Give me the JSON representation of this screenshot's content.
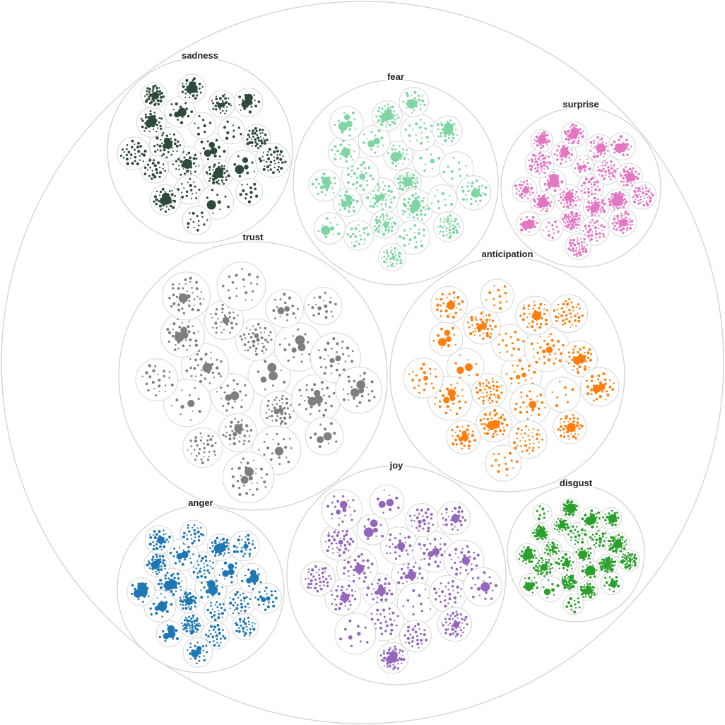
{
  "chart_data": {
    "type": "circle-packing",
    "groups": [
      {
        "name": "sadness",
        "color": "#2d4a3a",
        "clusters": 22
      },
      {
        "name": "fear",
        "color": "#7fd6a3",
        "clusters": 24
      },
      {
        "name": "surprise",
        "color": "#e377c2",
        "clusters": 23
      },
      {
        "name": "trust",
        "color": "#7f7f7f",
        "clusters": 22
      },
      {
        "name": "anticipation",
        "color": "#ff7f0e",
        "clusters": 22
      },
      {
        "name": "joy",
        "color": "#9467bd",
        "clusters": 22
      },
      {
        "name": "anger",
        "color": "#1f77b4",
        "clusters": 22
      },
      {
        "name": "disgust",
        "color": "#2ca02c",
        "clusters": 23
      }
    ]
  }
}
